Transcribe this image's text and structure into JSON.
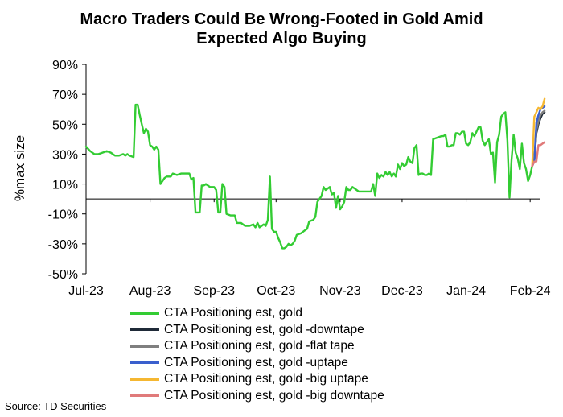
{
  "title_line1": "Macro Traders Could Be Wrong-Footed in Gold Amid",
  "title_line2": "Expected Algo Buying",
  "source": "Source: TD Securities",
  "chart_data": {
    "type": "line",
    "title": "Macro Traders Could Be Wrong-Footed in Gold Amid Expected Algo Buying",
    "ylabel": "%max size",
    "xlabel": "",
    "ylim": [
      -50,
      90
    ],
    "yticks": [
      -50,
      -30,
      -10,
      10,
      30,
      50,
      70,
      90
    ],
    "ytick_labels": [
      "-50%",
      "-30%",
      "-10%",
      "10%",
      "30%",
      "50%",
      "70%",
      "90%"
    ],
    "xlim": [
      "2023-07-01",
      "2024-02-06"
    ],
    "xtick_labels": [
      {
        "date": "2023-07-01",
        "label": "Jul-23"
      },
      {
        "date": "2023-08-01",
        "label": "Aug-23"
      },
      {
        "date": "2023-09-01",
        "label": "Sep-23"
      },
      {
        "date": "2023-10-01",
        "label": "Oct-23"
      },
      {
        "date": "2023-11-01",
        "label": "Nov-23"
      },
      {
        "date": "2023-12-01",
        "label": "Dec-23"
      },
      {
        "date": "2024-01-01",
        "label": "Jan-24"
      },
      {
        "date": "2024-02-01",
        "label": "Feb-24"
      }
    ],
    "legend_position": "bottom",
    "series": [
      {
        "name": "CTA Positioning est, gold",
        "color": "#33cc33",
        "points": [
          [
            "2023-07-01",
            35
          ],
          [
            "2023-07-03",
            32
          ],
          [
            "2023-07-05",
            30
          ],
          [
            "2023-07-07",
            30
          ],
          [
            "2023-07-09",
            31
          ],
          [
            "2023-07-11",
            32
          ],
          [
            "2023-07-13",
            31
          ],
          [
            "2023-07-15",
            29
          ],
          [
            "2023-07-17",
            29
          ],
          [
            "2023-07-19",
            30
          ],
          [
            "2023-07-20",
            29
          ],
          [
            "2023-07-21",
            30
          ],
          [
            "2023-07-22",
            29
          ],
          [
            "2023-07-24",
            28
          ],
          [
            "2023-07-25",
            63
          ],
          [
            "2023-07-26",
            63
          ],
          [
            "2023-07-27",
            56
          ],
          [
            "2023-07-28",
            50
          ],
          [
            "2023-07-29",
            44
          ],
          [
            "2023-07-30",
            47
          ],
          [
            "2023-07-31",
            45
          ],
          [
            "2023-08-01",
            36
          ],
          [
            "2023-08-02",
            35
          ],
          [
            "2023-08-03",
            33
          ],
          [
            "2023-08-04",
            35
          ],
          [
            "2023-08-05",
            33
          ],
          [
            "2023-08-06",
            10
          ],
          [
            "2023-08-07",
            12
          ],
          [
            "2023-08-08",
            14
          ],
          [
            "2023-08-09",
            15
          ],
          [
            "2023-08-11",
            15
          ],
          [
            "2023-08-12",
            17
          ],
          [
            "2023-08-14",
            16
          ],
          [
            "2023-08-16",
            17
          ],
          [
            "2023-08-18",
            17
          ],
          [
            "2023-08-20",
            17
          ],
          [
            "2023-08-21",
            13
          ],
          [
            "2023-08-22",
            14
          ],
          [
            "2023-08-23",
            -9
          ],
          [
            "2023-08-24",
            -9
          ],
          [
            "2023-08-25",
            -9
          ],
          [
            "2023-08-26",
            9
          ],
          [
            "2023-08-27",
            9
          ],
          [
            "2023-08-28",
            10
          ],
          [
            "2023-08-30",
            8
          ],
          [
            "2023-09-01",
            8
          ],
          [
            "2023-09-02",
            6
          ],
          [
            "2023-09-03",
            -9
          ],
          [
            "2023-09-04",
            -9
          ],
          [
            "2023-09-05",
            10
          ],
          [
            "2023-09-06",
            8
          ],
          [
            "2023-09-07",
            -10
          ],
          [
            "2023-09-09",
            -11
          ],
          [
            "2023-09-11",
            -11
          ],
          [
            "2023-09-12",
            -16
          ],
          [
            "2023-09-14",
            -16
          ],
          [
            "2023-09-16",
            -18
          ],
          [
            "2023-09-18",
            -18
          ],
          [
            "2023-09-20",
            -17
          ],
          [
            "2023-09-21",
            -19
          ],
          [
            "2023-09-22",
            -16
          ],
          [
            "2023-09-23",
            -19
          ],
          [
            "2023-09-24",
            -18
          ],
          [
            "2023-09-25",
            -17
          ],
          [
            "2023-09-26",
            -18
          ],
          [
            "2023-09-27",
            -14
          ],
          [
            "2023-09-28",
            15
          ],
          [
            "2023-09-29",
            -20
          ],
          [
            "2023-09-30",
            -22
          ],
          [
            "2023-10-01",
            -22
          ],
          [
            "2023-10-02",
            -26
          ],
          [
            "2023-10-03",
            -29
          ],
          [
            "2023-10-04",
            -33
          ],
          [
            "2023-10-05",
            -33
          ],
          [
            "2023-10-06",
            -32
          ],
          [
            "2023-10-07",
            -30
          ],
          [
            "2023-10-08",
            -31
          ],
          [
            "2023-10-09",
            -30
          ],
          [
            "2023-10-10",
            -28
          ],
          [
            "2023-10-11",
            -24
          ],
          [
            "2023-10-13",
            -23
          ],
          [
            "2023-10-15",
            -21
          ],
          [
            "2023-10-16",
            -20
          ],
          [
            "2023-10-17",
            -15
          ],
          [
            "2023-10-19",
            -14
          ],
          [
            "2023-10-20",
            -12
          ],
          [
            "2023-10-21",
            -2
          ],
          [
            "2023-10-22",
            0
          ],
          [
            "2023-10-23",
            2
          ],
          [
            "2023-10-24",
            8
          ],
          [
            "2023-10-25",
            6
          ],
          [
            "2023-10-26",
            7
          ],
          [
            "2023-10-27",
            8
          ],
          [
            "2023-10-28",
            3
          ],
          [
            "2023-10-29",
            4
          ],
          [
            "2023-10-30",
            -6
          ],
          [
            "2023-10-31",
            2
          ],
          [
            "2023-11-01",
            -7
          ],
          [
            "2023-11-02",
            -5
          ],
          [
            "2023-11-03",
            -2
          ],
          [
            "2023-11-04",
            8
          ],
          [
            "2023-11-05",
            6
          ],
          [
            "2023-11-06",
            6
          ],
          [
            "2023-11-07",
            8
          ],
          [
            "2023-11-08",
            7
          ],
          [
            "2023-11-09",
            6
          ],
          [
            "2023-11-10",
            5
          ],
          [
            "2023-11-12",
            5
          ],
          [
            "2023-11-14",
            5
          ],
          [
            "2023-11-16",
            5
          ],
          [
            "2023-11-17",
            10
          ],
          [
            "2023-11-18",
            2
          ],
          [
            "2023-11-19",
            17
          ],
          [
            "2023-11-20",
            14
          ],
          [
            "2023-11-21",
            16
          ],
          [
            "2023-11-22",
            15
          ],
          [
            "2023-11-23",
            18
          ],
          [
            "2023-11-24",
            16
          ],
          [
            "2023-11-25",
            18
          ],
          [
            "2023-11-26",
            15
          ],
          [
            "2023-11-27",
            17
          ],
          [
            "2023-11-28",
            15
          ],
          [
            "2023-11-29",
            23
          ],
          [
            "2023-11-30",
            20
          ],
          [
            "2023-12-01",
            24
          ],
          [
            "2023-12-02",
            22
          ],
          [
            "2023-12-03",
            23
          ],
          [
            "2023-12-04",
            28
          ],
          [
            "2023-12-05",
            25
          ],
          [
            "2023-12-06",
            24
          ],
          [
            "2023-12-07",
            34
          ],
          [
            "2023-12-08",
            36
          ],
          [
            "2023-12-09",
            16
          ],
          [
            "2023-12-10",
            17
          ],
          [
            "2023-12-11",
            17
          ],
          [
            "2023-12-12",
            16
          ],
          [
            "2023-12-13",
            16
          ],
          [
            "2023-12-14",
            17
          ],
          [
            "2023-12-15",
            16
          ],
          [
            "2023-12-16",
            40
          ],
          [
            "2023-12-18",
            41
          ],
          [
            "2023-12-20",
            42
          ],
          [
            "2023-12-21",
            42
          ],
          [
            "2023-12-22",
            43
          ],
          [
            "2023-12-23",
            35
          ],
          [
            "2023-12-24",
            35
          ],
          [
            "2023-12-25",
            36
          ],
          [
            "2023-12-26",
            36
          ],
          [
            "2023-12-27",
            44
          ],
          [
            "2023-12-28",
            44
          ],
          [
            "2023-12-29",
            43
          ],
          [
            "2023-12-30",
            45
          ],
          [
            "2023-12-31",
            45
          ],
          [
            "2024-01-01",
            37
          ],
          [
            "2024-01-02",
            36
          ],
          [
            "2024-01-03",
            38
          ],
          [
            "2024-01-04",
            44
          ],
          [
            "2024-01-05",
            42
          ],
          [
            "2024-01-06",
            45
          ],
          [
            "2024-01-07",
            48
          ],
          [
            "2024-01-08",
            48
          ],
          [
            "2024-01-09",
            39
          ],
          [
            "2024-01-10",
            36
          ],
          [
            "2024-01-11",
            38
          ],
          [
            "2024-01-12",
            40
          ],
          [
            "2024-01-13",
            30
          ],
          [
            "2024-01-14",
            31
          ],
          [
            "2024-01-15",
            11
          ],
          [
            "2024-01-16",
            38
          ],
          [
            "2024-01-17",
            43
          ],
          [
            "2024-01-18",
            55
          ],
          [
            "2024-01-19",
            57
          ],
          [
            "2024-01-20",
            58
          ],
          [
            "2024-01-21",
            39
          ],
          [
            "2024-01-22",
            1
          ],
          [
            "2024-01-23",
            26
          ],
          [
            "2024-01-24",
            43
          ],
          [
            "2024-01-25",
            31
          ],
          [
            "2024-01-26",
            27
          ],
          [
            "2024-01-27",
            20
          ],
          [
            "2024-01-28",
            37
          ],
          [
            "2024-01-29",
            24
          ],
          [
            "2024-01-30",
            20
          ],
          [
            "2024-01-31",
            12
          ],
          [
            "2024-02-01",
            16
          ],
          [
            "2024-02-02",
            22
          ]
        ]
      },
      {
        "name": "CTA Positioning est, gold -downtape",
        "color": "#1f2a38",
        "points": [
          [
            "2024-02-02",
            22
          ],
          [
            "2024-02-03",
            26
          ],
          [
            "2024-02-04",
            44
          ],
          [
            "2024-02-05",
            50
          ],
          [
            "2024-02-06",
            54
          ],
          [
            "2024-02-07",
            57
          ],
          [
            "2024-02-08",
            58
          ]
        ]
      },
      {
        "name": "CTA Positioning est, gold -flat tape",
        "color": "#7f7f7f",
        "points": [
          [
            "2024-02-02",
            22
          ],
          [
            "2024-02-03",
            25
          ],
          [
            "2024-02-04",
            46
          ],
          [
            "2024-02-05",
            52
          ],
          [
            "2024-02-06",
            56
          ],
          [
            "2024-02-07",
            58
          ],
          [
            "2024-02-08",
            59
          ]
        ]
      },
      {
        "name": "CTA Positioning est, gold -uptape",
        "color": "#3a5fcd",
        "points": [
          [
            "2024-02-02",
            22
          ],
          [
            "2024-02-03",
            25
          ],
          [
            "2024-02-04",
            51
          ],
          [
            "2024-02-05",
            56
          ],
          [
            "2024-02-06",
            60
          ],
          [
            "2024-02-07",
            61
          ],
          [
            "2024-02-08",
            62
          ]
        ]
      },
      {
        "name": "CTA Positioning est, gold -big uptape",
        "color": "#f5b731",
        "points": [
          [
            "2024-02-02",
            22
          ],
          [
            "2024-02-03",
            55
          ],
          [
            "2024-02-04",
            58
          ],
          [
            "2024-02-05",
            61
          ],
          [
            "2024-02-06",
            60
          ],
          [
            "2024-02-07",
            62
          ],
          [
            "2024-02-08",
            67
          ]
        ]
      },
      {
        "name": "CTA Positioning est, gold -big downtape",
        "color": "#e07a7a",
        "points": [
          [
            "2024-02-02",
            22
          ],
          [
            "2024-02-03",
            25
          ],
          [
            "2024-02-04",
            25
          ],
          [
            "2024-02-05",
            36
          ],
          [
            "2024-02-06",
            36
          ],
          [
            "2024-02-07",
            37
          ],
          [
            "2024-02-08",
            38
          ]
        ]
      }
    ]
  }
}
